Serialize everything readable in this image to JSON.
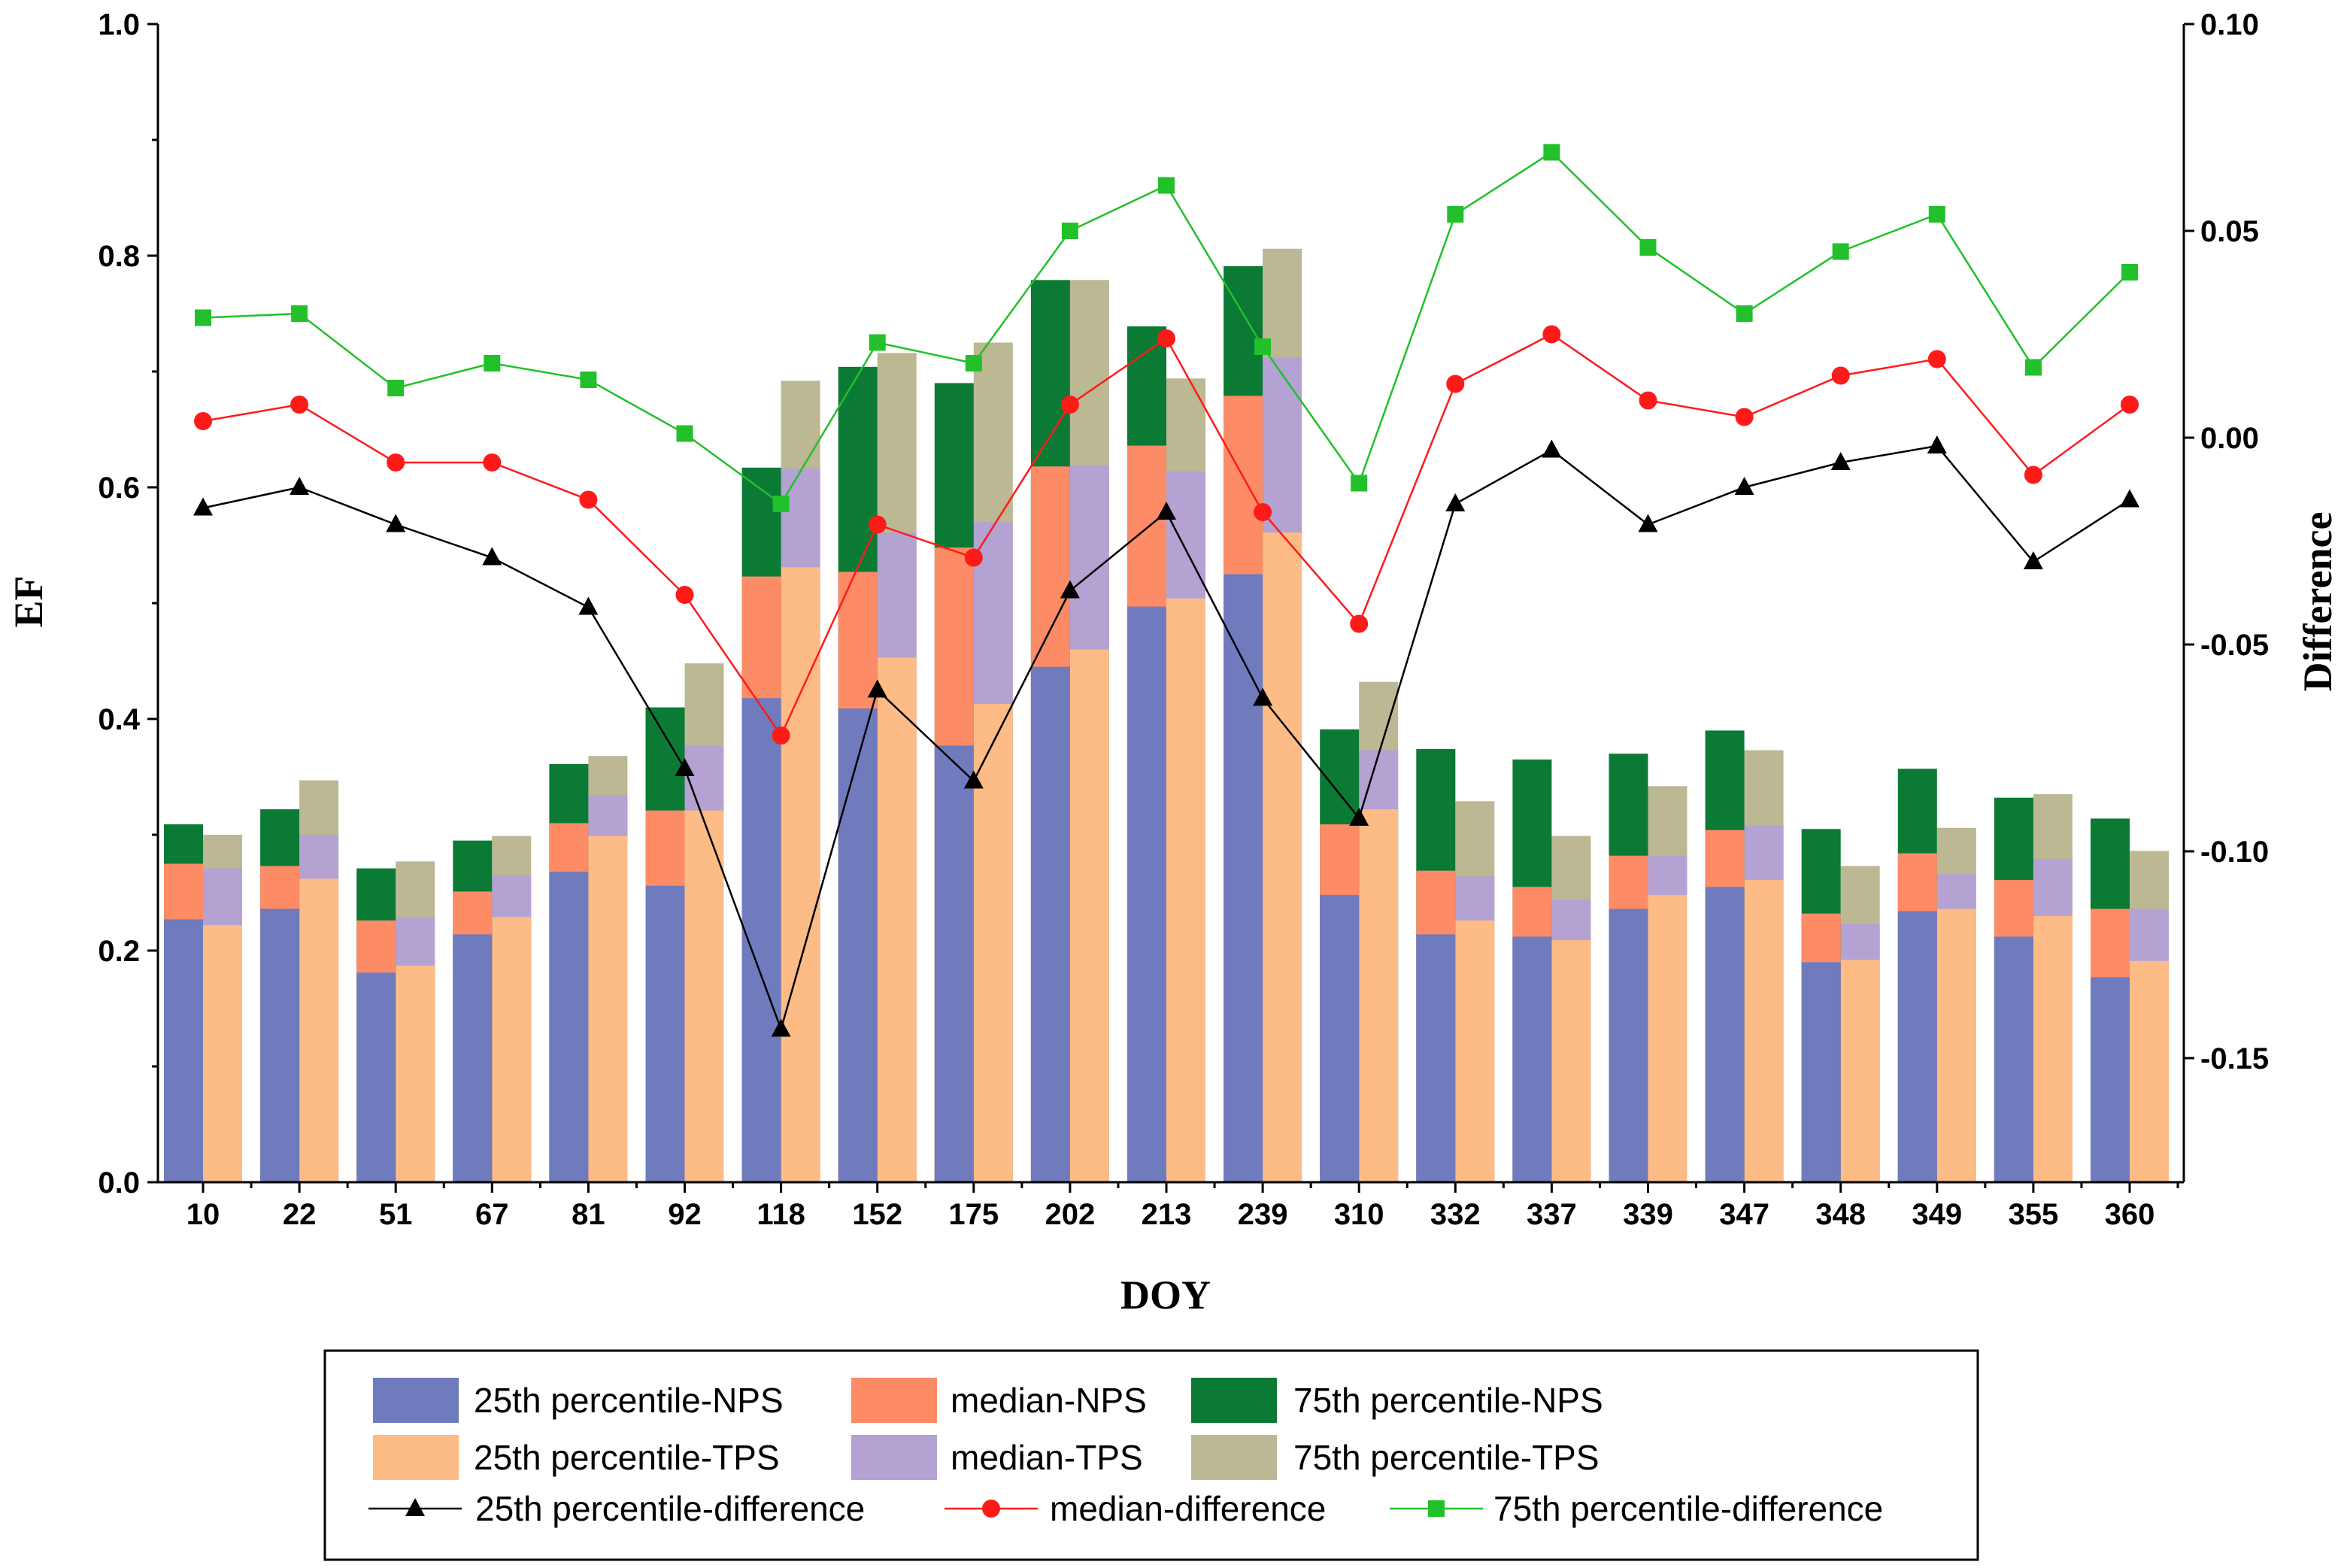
{
  "chart_data": {
    "type": "bar",
    "xlabel": "DOY",
    "ylabel": "EF",
    "y2label": "Difference",
    "ylim": [
      0,
      1.0
    ],
    "y2lim": [
      -0.18,
      0.1
    ],
    "yticks": [
      "0.0",
      "0.2",
      "0.4",
      "0.6",
      "0.8",
      "1.0"
    ],
    "y2ticks": [
      "-0.15",
      "-0.10",
      "-0.05",
      "0.00",
      "0.05",
      "0.10"
    ],
    "categories": [
      "10",
      "22",
      "51",
      "67",
      "81",
      "92",
      "118",
      "152",
      "175",
      "202",
      "213",
      "239",
      "310",
      "332",
      "337",
      "339",
      "347",
      "348",
      "349",
      "355",
      "360"
    ],
    "bar_series": [
      {
        "name": "25th percentile-NPS",
        "group": "NPS",
        "color": "#6f7bbd",
        "values": [
          0.227,
          0.236,
          0.181,
          0.214,
          0.268,
          0.256,
          0.418,
          0.409,
          0.377,
          0.445,
          0.497,
          0.525,
          0.248,
          0.214,
          0.212,
          0.236,
          0.255,
          0.19,
          0.234,
          0.212,
          0.177
        ]
      },
      {
        "name": "median-NPS",
        "group": "NPS",
        "color": "#fd8b66",
        "values": [
          0.275,
          0.273,
          0.226,
          0.251,
          0.31,
          0.321,
          0.523,
          0.527,
          0.548,
          0.618,
          0.636,
          0.679,
          0.309,
          0.269,
          0.255,
          0.282,
          0.304,
          0.232,
          0.284,
          0.261,
          0.236
        ]
      },
      {
        "name": "75th percentile-NPS",
        "group": "NPS",
        "color": "#0b7a35",
        "values": [
          0.309,
          0.322,
          0.271,
          0.295,
          0.361,
          0.41,
          0.617,
          0.704,
          0.69,
          0.779,
          0.739,
          0.791,
          0.391,
          0.374,
          0.365,
          0.37,
          0.39,
          0.305,
          0.357,
          0.332,
          0.314
        ]
      },
      {
        "name": "25th percentile-TPS",
        "group": "TPS",
        "color": "#fdbb86",
        "values": [
          0.222,
          0.262,
          0.187,
          0.229,
          0.299,
          0.321,
          0.531,
          0.453,
          0.413,
          0.46,
          0.504,
          0.561,
          0.322,
          0.226,
          0.209,
          0.248,
          0.261,
          0.192,
          0.236,
          0.23,
          0.191
        ]
      },
      {
        "name": "median-TPS",
        "group": "TPS",
        "color": "#b3a2d2",
        "values": [
          0.271,
          0.3,
          0.229,
          0.265,
          0.334,
          0.377,
          0.616,
          0.561,
          0.57,
          0.619,
          0.614,
          0.712,
          0.373,
          0.264,
          0.244,
          0.282,
          0.308,
          0.223,
          0.266,
          0.279,
          0.236
        ]
      },
      {
        "name": "75th percentile-TPS",
        "group": "TPS",
        "color": "#bcb893",
        "values": [
          0.3,
          0.347,
          0.277,
          0.299,
          0.368,
          0.448,
          0.692,
          0.716,
          0.725,
          0.779,
          0.694,
          0.806,
          0.432,
          0.329,
          0.299,
          0.342,
          0.373,
          0.273,
          0.306,
          0.335,
          0.286
        ]
      }
    ],
    "line_series": [
      {
        "name": "25th percentile-difference",
        "color": "#000000",
        "marker": "triangle",
        "axis": "right",
        "values": [
          -0.017,
          -0.012,
          -0.021,
          -0.029,
          -0.041,
          -0.08,
          -0.143,
          -0.061,
          -0.083,
          -0.037,
          -0.018,
          -0.063,
          -0.092,
          -0.016,
          -0.003,
          -0.021,
          -0.012,
          -0.006,
          -0.002,
          -0.03,
          -0.015
        ]
      },
      {
        "name": "median-difference",
        "color": "#ff1a1a",
        "marker": "circle",
        "axis": "right",
        "values": [
          0.004,
          0.008,
          -0.006,
          -0.006,
          -0.015,
          -0.038,
          -0.072,
          -0.021,
          -0.029,
          0.008,
          0.024,
          -0.018,
          -0.045,
          0.013,
          0.025,
          0.009,
          0.005,
          0.015,
          0.019,
          -0.009,
          0.008
        ]
      },
      {
        "name": "75th percentile-difference",
        "color": "#22c02a",
        "marker": "square",
        "axis": "right",
        "values": [
          0.029,
          0.03,
          0.012,
          0.018,
          0.014,
          0.001,
          -0.016,
          0.023,
          0.018,
          0.05,
          0.061,
          0.022,
          -0.011,
          0.054,
          0.069,
          0.046,
          0.03,
          0.045,
          0.054,
          0.017,
          0.04
        ]
      }
    ],
    "legend_placement": "bottom"
  }
}
